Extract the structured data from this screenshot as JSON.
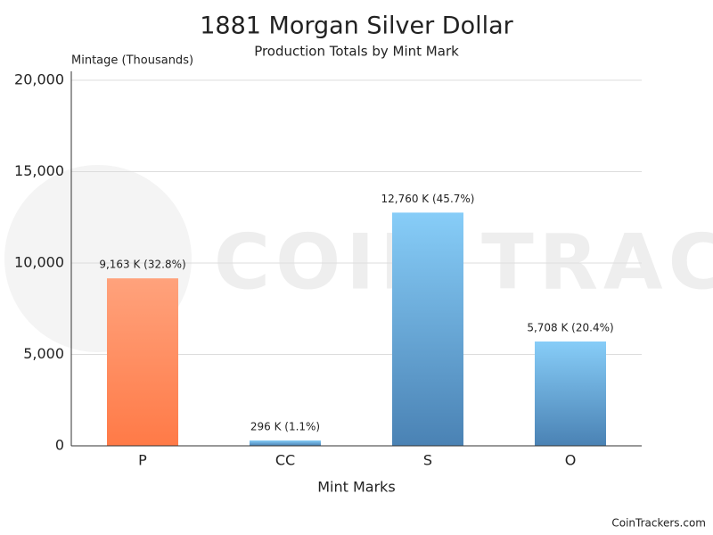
{
  "chart_data": {
    "type": "bar",
    "title": "1881 Morgan Silver Dollar",
    "subtitle": "Production Totals by Mint Mark",
    "y_label": "Mintage (Thousands)",
    "x_label": "Mint Marks",
    "categories": [
      "P",
      "CC",
      "S",
      "O"
    ],
    "values": [
      9163,
      296,
      12760,
      5708
    ],
    "value_labels": [
      "9,163 K (32.8%)",
      "296 K (1.1%)",
      "12,760 K (45.7%)",
      "5,708 K (20.4%)"
    ],
    "colors": [
      [
        "#ffa27c",
        "#ff7a47"
      ],
      [
        "#87cdf8",
        "#4a82b4"
      ],
      [
        "#87cdf8",
        "#4a82b4"
      ],
      [
        "#87cdf8",
        "#4a82b4"
      ]
    ],
    "ylim": [
      0,
      20000
    ],
    "yticks": [
      0,
      {
        "value": 5000,
        "label": "5,000"
      },
      {
        "value": 10000,
        "label": "10,000"
      },
      {
        "value": 15000,
        "label": "15,000"
      },
      {
        "value": 20000,
        "label": "20,000"
      }
    ],
    "grid": true,
    "watermark": "COIN TRACKERS",
    "footer": "CoinTrackers.com"
  }
}
